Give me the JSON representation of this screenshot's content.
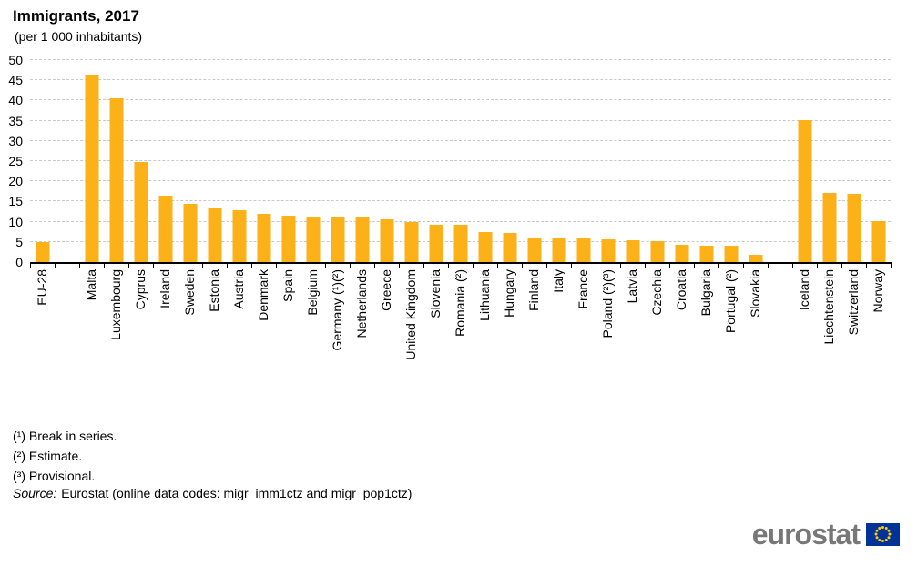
{
  "chart_data": {
    "type": "bar",
    "title": "Immigrants, 2017",
    "subtitle": "(per 1 000 inhabitants)",
    "ylim": [
      0,
      50
    ],
    "ytick_interval": 5,
    "grid": "horizontal-dashed",
    "legend": "none",
    "bar_color": "#FBB117",
    "bars": [
      {
        "label": "EU-28",
        "value": 4.9
      },
      {
        "label": "",
        "value": null,
        "spacer": true
      },
      {
        "label": "Malta",
        "value": 46.3
      },
      {
        "label": "Luxembourg",
        "value": 40.6
      },
      {
        "label": "Cyprus",
        "value": 24.8
      },
      {
        "label": "Ireland",
        "value": 16.4
      },
      {
        "label": "Sweden",
        "value": 14.5
      },
      {
        "label": "Estonia",
        "value": 13.3
      },
      {
        "label": "Austria",
        "value": 12.8
      },
      {
        "label": "Denmark",
        "value": 12.0
      },
      {
        "label": "Spain",
        "value": 11.5
      },
      {
        "label": "Belgium",
        "value": 11.2
      },
      {
        "label": "Germany (¹)(²)",
        "value": 11.1
      },
      {
        "label": "Netherlands",
        "value": 11.1
      },
      {
        "label": "Greece",
        "value": 10.6
      },
      {
        "label": "United Kingdom",
        "value": 10.0
      },
      {
        "label": "Slovenia",
        "value": 9.3
      },
      {
        "label": "Romania (²)",
        "value": 9.2
      },
      {
        "label": "Lithuania",
        "value": 7.5
      },
      {
        "label": "Hungary",
        "value": 7.1
      },
      {
        "label": "Finland",
        "value": 6.1
      },
      {
        "label": "Italy",
        "value": 6.1
      },
      {
        "label": "France",
        "value": 5.9
      },
      {
        "label": "Poland (²)(³)",
        "value": 5.7
      },
      {
        "label": "Latvia",
        "value": 5.3
      },
      {
        "label": "Czechia",
        "value": 5.1
      },
      {
        "label": "Croatia",
        "value": 4.2
      },
      {
        "label": "Bulgaria",
        "value": 4.0
      },
      {
        "label": "Portugal (²)",
        "value": 4.0
      },
      {
        "label": "Slovakia",
        "value": 1.7
      },
      {
        "label": "",
        "value": null,
        "spacer": true
      },
      {
        "label": "Iceland",
        "value": 35.2
      },
      {
        "label": "Liechtenstein",
        "value": 17.1
      },
      {
        "label": "Switzerland",
        "value": 17.0
      },
      {
        "label": "Norway",
        "value": 10.2
      }
    ]
  },
  "footnotes": [
    "(¹) Break in series.",
    "(²) Estimate.",
    "(³) Provisional."
  ],
  "source": {
    "label": "Source:",
    "text": "Eurostat (online data codes: migr_imm1ctz and migr_pop1ctz)"
  },
  "logo": {
    "text": "eurostat",
    "flag_blue": "#003399",
    "star_yellow": "#FFCC00",
    "text_gray": "#777777"
  }
}
